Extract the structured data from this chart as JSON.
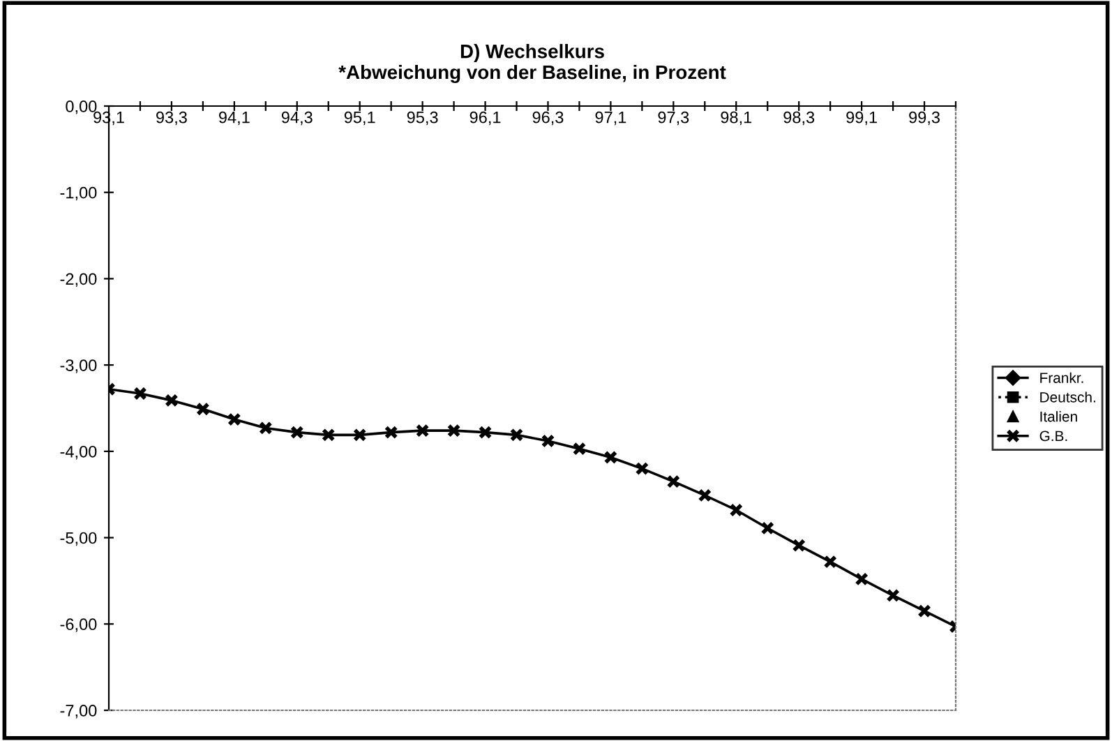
{
  "chart_data": {
    "type": "line",
    "title": "D) Wechselkurs",
    "subtitle": "*Abweichung von der Baseline, in Prozent",
    "categories": [
      "93,1",
      null,
      "93,3",
      null,
      "94,1",
      null,
      "94,3",
      null,
      "95,1",
      null,
      "95,3",
      null,
      "96,1",
      null,
      "96,3",
      null,
      "97,1",
      null,
      "97,3",
      null,
      "98,1",
      null,
      "98,3",
      null,
      "99,1",
      null,
      "99,3",
      null
    ],
    "series": [
      {
        "name": "Frankr.",
        "color": "#000000",
        "marker": "diamond",
        "line_style": "solid",
        "values": [
          null,
          null,
          null,
          null,
          null,
          null,
          null,
          null,
          null,
          null,
          null,
          null,
          null,
          null,
          null,
          null,
          null,
          null,
          null,
          null,
          null,
          null,
          null,
          null,
          null,
          null,
          null,
          null
        ]
      },
      {
        "name": "Deutsch.",
        "color": "#000000",
        "marker": "square",
        "line_style": "dotted",
        "values": [
          null,
          null,
          null,
          null,
          null,
          null,
          null,
          null,
          null,
          null,
          null,
          null,
          null,
          null,
          null,
          null,
          null,
          null,
          null,
          null,
          null,
          null,
          null,
          null,
          null,
          null,
          null,
          null
        ]
      },
      {
        "name": "Italien",
        "color": "#000000",
        "marker": "triangle",
        "line_style": "none",
        "values": [
          null,
          null,
          null,
          null,
          null,
          null,
          null,
          null,
          null,
          null,
          null,
          null,
          null,
          null,
          null,
          null,
          null,
          null,
          null,
          null,
          null,
          null,
          null,
          null,
          null,
          null,
          null,
          null
        ]
      },
      {
        "name": "G.B.",
        "color": "#000000",
        "marker": "cross",
        "line_style": "solid",
        "values": [
          -3.28,
          -3.33,
          -3.41,
          -3.51,
          -3.63,
          -3.73,
          -3.78,
          -3.81,
          -3.81,
          -3.78,
          -3.76,
          -3.76,
          -3.78,
          -3.81,
          -3.88,
          -3.97,
          -4.07,
          -4.2,
          -4.35,
          -4.51,
          -4.68,
          -4.89,
          -5.09,
          -5.28,
          -5.48,
          -5.67,
          -5.85,
          -6.03
        ]
      }
    ],
    "ylim": [
      -7,
      0
    ],
    "yticks": [
      {
        "value": 0,
        "label": "0,00"
      },
      {
        "value": -1,
        "label": "-1,00"
      },
      {
        "value": -2,
        "label": "-2,00"
      },
      {
        "value": -3,
        "label": "-3,00"
      },
      {
        "value": -4,
        "label": "-4,00"
      },
      {
        "value": -5,
        "label": "-5,00"
      },
      {
        "value": -6,
        "label": "-6,00"
      },
      {
        "value": -7,
        "label": "-7,00"
      }
    ],
    "grid": false,
    "legend": "right"
  }
}
